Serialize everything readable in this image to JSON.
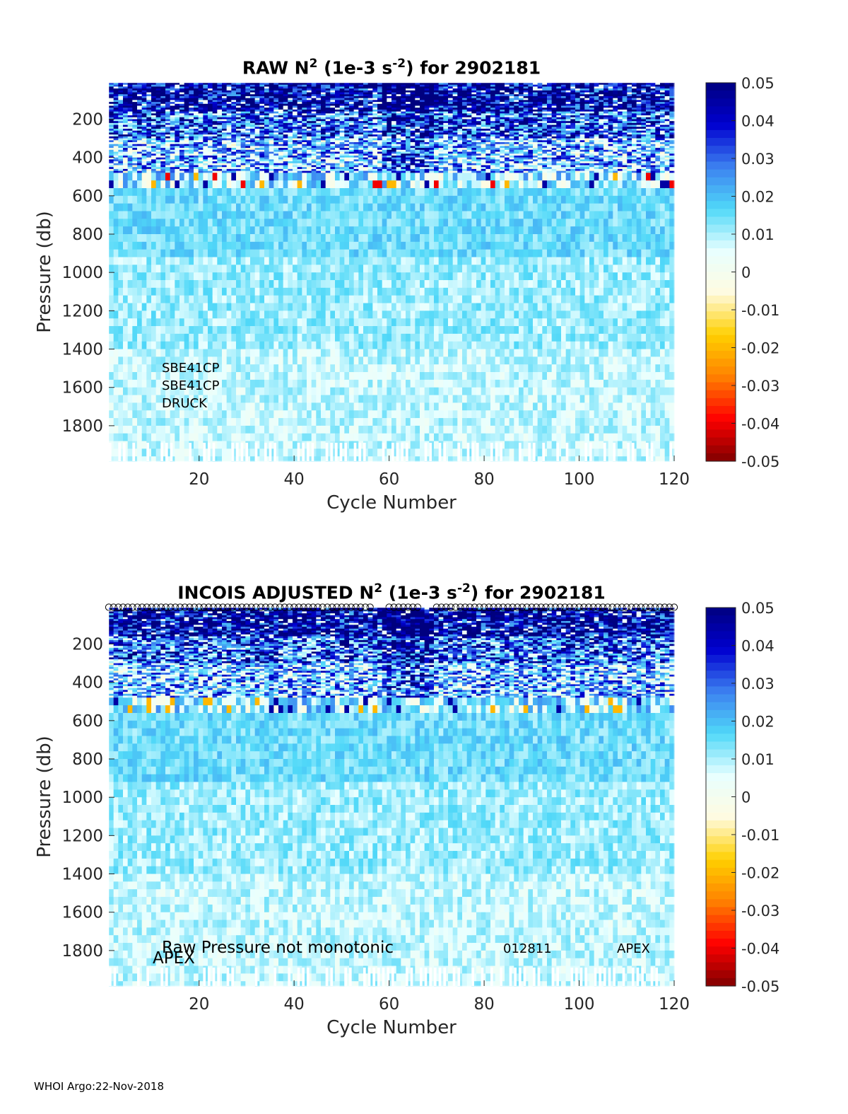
{
  "footer": "WHOI Argo:22-Nov-2018",
  "chart_data": [
    {
      "type": "heatmap",
      "title_main": "RAW N",
      "title_sup1": "2",
      "title_mid": " (1e-3 s",
      "title_sup2": "-2",
      "title_end": ") for 2902181",
      "xlabel": "Cycle Number",
      "ylabel": "Pressure (db)",
      "xlim": [
        1,
        120
      ],
      "ylim": [
        1985,
        10
      ],
      "xticks": [
        20,
        40,
        60,
        80,
        100,
        120
      ],
      "yticks": [
        200,
        400,
        600,
        800,
        1000,
        1200,
        1400,
        1600,
        1800
      ],
      "colorbar_ticks": [
        "0.05",
        "0.04",
        "0.03",
        "0.02",
        "0.01",
        "0",
        "-0.01",
        "-0.02",
        "-0.03",
        "-0.04",
        "-0.05"
      ],
      "clim": [
        -0.05,
        0.05
      ],
      "colormap": [
        "#800000",
        "#ff0000",
        "#ff8000",
        "#ffd000",
        "#fffbe0",
        "#e8ffff",
        "#50d8f8",
        "#3c80f0",
        "#0000d0",
        "#00007f"
      ],
      "annotations": [
        "SBE41CP",
        "SBE41CP",
        "DRUCK"
      ]
    },
    {
      "type": "heatmap",
      "title_main": "INCOIS  ADJUSTED N",
      "title_sup1": "2",
      "title_mid": " (1e-3 s",
      "title_sup2": "-2",
      "title_end": ") for 2902181",
      "xlabel": "Cycle Number",
      "ylabel": "Pressure (db)",
      "xlim": [
        1,
        120
      ],
      "ylim": [
        1985,
        10
      ],
      "xticks": [
        20,
        40,
        60,
        80,
        100,
        120
      ],
      "yticks": [
        200,
        400,
        600,
        800,
        1000,
        1200,
        1400,
        1600,
        1800
      ],
      "colorbar_ticks": [
        "0.05",
        "0.04",
        "0.03",
        "0.02",
        "0.01",
        "0",
        "-0.01",
        "-0.02",
        "-0.03",
        "-0.04",
        "-0.05"
      ],
      "clim": [
        -0.05,
        0.05
      ],
      "colormap": [
        "#800000",
        "#ff0000",
        "#ff8000",
        "#ffd000",
        "#fffbe0",
        "#e8ffff",
        "#50d8f8",
        "#3c80f0",
        "#0000d0",
        "#00007f"
      ],
      "annotations": [
        "Raw Pressure not monotonic",
        "APEX",
        "012811",
        "APEX"
      ]
    }
  ]
}
